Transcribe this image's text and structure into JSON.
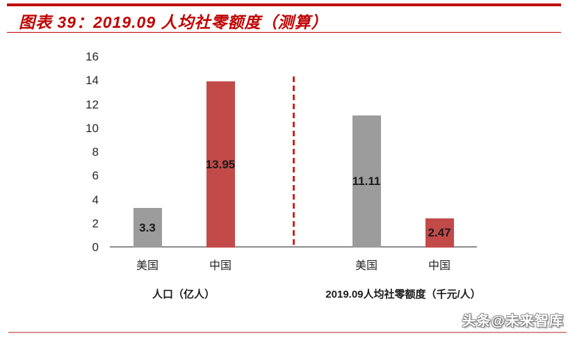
{
  "header": {
    "title": "图表 39：2019.09 人均社零额度（测算）",
    "accent_color": "#c00000"
  },
  "chart_data": {
    "type": "bar",
    "title": "图表 39：2019.09 人均社零额度（测算）",
    "ylim": [
      0,
      16
    ],
    "yticks": [
      0,
      2,
      4,
      6,
      8,
      10,
      12,
      14,
      16
    ],
    "grid": false,
    "legend": "none",
    "groups": [
      {
        "label": "人口（亿人）",
        "bars": [
          {
            "category": "美国",
            "value": 3.3,
            "value_label": "3.3",
            "color_key": "gray"
          },
          {
            "category": "中国",
            "value": 13.95,
            "value_label": "13.95",
            "color_key": "red"
          }
        ]
      },
      {
        "label": "2019.09人均社零额度（千元/人）",
        "bars": [
          {
            "category": "美国",
            "value": 11.11,
            "value_label": "11.11",
            "color_key": "gray"
          },
          {
            "category": "中国",
            "value": 2.47,
            "value_label": "2.47",
            "color_key": "red"
          }
        ]
      }
    ],
    "colors": {
      "gray": "#9c9c9c",
      "red": "#c24b4a"
    },
    "value_label_color": "#1a1a1a",
    "divider": {
      "style": "dashed",
      "color": "#cc2424",
      "position": "between_groups"
    },
    "axis_line_color": "#8c8c8c"
  },
  "footer": {
    "watermark": "头条@未来智库",
    "bottom_rule_color": "#d98f8f"
  }
}
